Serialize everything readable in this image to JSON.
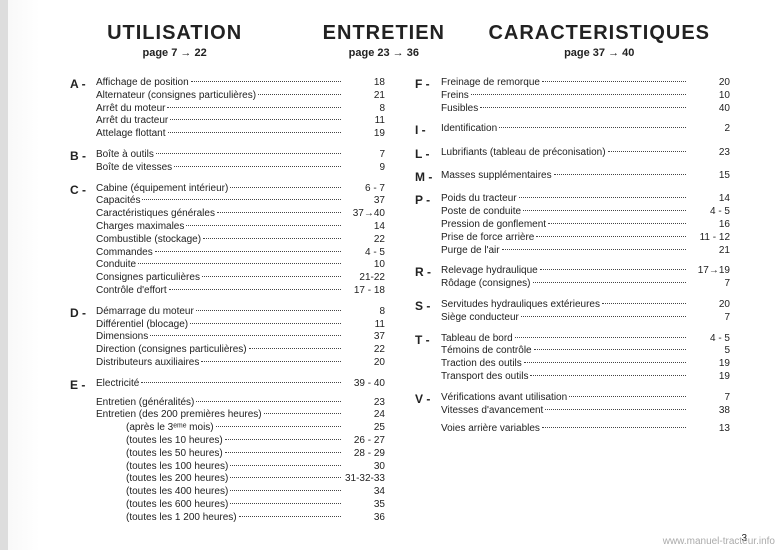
{
  "headers": [
    {
      "title": "UTILISATION",
      "sub": "page 7 → 22"
    },
    {
      "title": "ENTRETIEN",
      "sub": "page 23 → 36"
    },
    {
      "title": "CARACTERISTIQUES",
      "sub": "page 37 → 40"
    }
  ],
  "left": [
    {
      "letter": "A",
      "lines": [
        {
          "label": "Affichage de position",
          "pg": "18"
        },
        {
          "label": "Alternateur (consignes particulières)",
          "pg": "21"
        },
        {
          "label": "Arrêt du moteur",
          "pg": "8"
        },
        {
          "label": "Arrêt du tracteur",
          "pg": "11"
        },
        {
          "label": "Attelage flottant",
          "pg": "19"
        }
      ]
    },
    {
      "letter": "B",
      "lines": [
        {
          "label": "Boîte à outils",
          "pg": "7"
        },
        {
          "label": "Boîte de vitesses",
          "pg": "9"
        }
      ]
    },
    {
      "letter": "C",
      "lines": [
        {
          "label": "Cabine (équipement intérieur)",
          "pg": "6 - 7"
        },
        {
          "label": "Capacités",
          "pg": "37"
        },
        {
          "label": "Caractéristiques générales",
          "pg": "37→40"
        },
        {
          "label": "Charges maximales",
          "pg": "14"
        },
        {
          "label": "Combustible (stockage)",
          "pg": "22"
        },
        {
          "label": "Commandes",
          "pg": "4 - 5"
        },
        {
          "label": "Conduite",
          "pg": "10"
        },
        {
          "label": "Consignes particulières",
          "pg": "21-22"
        },
        {
          "label": "Contrôle d'effort",
          "pg": "17 - 18"
        }
      ]
    },
    {
      "letter": "D",
      "lines": [
        {
          "label": "Démarrage du moteur",
          "pg": "8"
        },
        {
          "label": "Différentiel (blocage)",
          "pg": "11"
        },
        {
          "label": "Dimensions",
          "pg": "37"
        },
        {
          "label": "Direction (consignes particulières)",
          "pg": "22"
        },
        {
          "label": "Distributeurs auxiliaires",
          "pg": "20"
        }
      ]
    },
    {
      "letter": "E",
      "lines": [
        {
          "label": "Electricité",
          "pg": "39 - 40"
        },
        {
          "label": "Entretien (généralités)",
          "pg": "23",
          "gapbefore": true
        },
        {
          "label": "Entretien (des 200 premières heures)",
          "pg": "24"
        },
        {
          "label": "(après le 3ᵉᵐᵉ mois)",
          "pg": "25",
          "indent": true
        },
        {
          "label": "(toutes les 10 heures)",
          "pg": "26 - 27",
          "indent": true
        },
        {
          "label": "(toutes les 50 heures)",
          "pg": "28 - 29",
          "indent": true
        },
        {
          "label": "(toutes les 100 heures)",
          "pg": "30",
          "indent": true
        },
        {
          "label": "(toutes les 200 heures)",
          "pg": "31-32-33",
          "indent": true
        },
        {
          "label": "(toutes les 400 heures)",
          "pg": "34",
          "indent": true
        },
        {
          "label": "(toutes les 600 heures)",
          "pg": "35",
          "indent": true
        },
        {
          "label": "(toutes les 1 200 heures)",
          "pg": "36",
          "indent": true
        }
      ]
    }
  ],
  "right": [
    {
      "letter": "F",
      "lines": [
        {
          "label": "Freinage de remorque",
          "pg": "20"
        },
        {
          "label": "Freins",
          "pg": "10"
        },
        {
          "label": "Fusibles",
          "pg": "40"
        }
      ]
    },
    {
      "letter": "I",
      "lines": [
        {
          "label": "Identification",
          "pg": "2"
        }
      ]
    },
    {
      "letter": "L",
      "lines": [
        {
          "label": "Lubrifiants (tableau de préconisation)",
          "pg": "23"
        }
      ]
    },
    {
      "letter": "M",
      "lines": [
        {
          "label": "Masses supplémentaires",
          "pg": "15"
        }
      ]
    },
    {
      "letter": "P",
      "lines": [
        {
          "label": "Poids du tracteur",
          "pg": "14"
        },
        {
          "label": "Poste de conduite",
          "pg": "4 - 5"
        },
        {
          "label": "Pression de gonflement",
          "pg": "16"
        },
        {
          "label": "Prise de force arrière",
          "pg": "11 - 12"
        },
        {
          "label": "Purge de l'air",
          "pg": "21"
        }
      ]
    },
    {
      "letter": "R",
      "lines": [
        {
          "label": "Relevage hydraulique",
          "pg": "17→19"
        },
        {
          "label": "Rôdage (consignes)",
          "pg": "7"
        }
      ]
    },
    {
      "letter": "S",
      "lines": [
        {
          "label": "Servitudes hydrauliques extérieures",
          "pg": "20"
        },
        {
          "label": "Siège conducteur",
          "pg": "7"
        }
      ]
    },
    {
      "letter": "T",
      "lines": [
        {
          "label": "Tableau de bord",
          "pg": "4 - 5"
        },
        {
          "label": "Témoins de contrôle",
          "pg": "5"
        },
        {
          "label": "Traction des outils",
          "pg": "19"
        },
        {
          "label": "Transport des outils",
          "pg": "19"
        }
      ]
    },
    {
      "letter": "V",
      "lines": [
        {
          "label": "Vérifications avant utilisation",
          "pg": "7"
        },
        {
          "label": "Vitesses d'avancement",
          "pg": "38"
        },
        {
          "label": "Voies arrière variables",
          "pg": "13",
          "gapbefore": true
        }
      ]
    }
  ],
  "pageNumber": "3",
  "watermark": "www.manuel-tracteur.info"
}
